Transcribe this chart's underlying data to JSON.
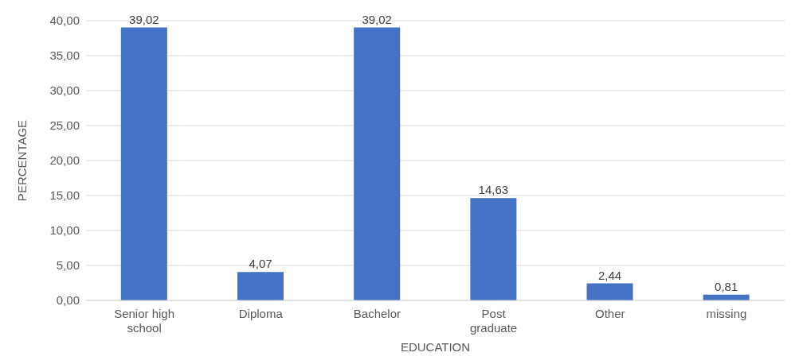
{
  "chart_data": {
    "type": "bar",
    "xlabel": "EDUCATION",
    "ylabel": "PERCENTAGE",
    "categories": [
      "Senior high school",
      "Diploma",
      "Bachelor",
      "Post graduate",
      "Other",
      "missing"
    ],
    "values": [
      39.02,
      4.07,
      39.02,
      14.63,
      2.44,
      0.81
    ],
    "value_labels": [
      "39,02",
      "4,07",
      "39,02",
      "14,63",
      "2,44",
      "0,81"
    ],
    "color": "#4472c4",
    "ylim": [
      0,
      40
    ],
    "yticks": [
      {
        "value": 0,
        "label": "0,00"
      },
      {
        "value": 5,
        "label": "5,00"
      },
      {
        "value": 10,
        "label": "10,00"
      },
      {
        "value": 15,
        "label": "15,00"
      },
      {
        "value": 20,
        "label": "20,00"
      },
      {
        "value": 25,
        "label": "25,00"
      },
      {
        "value": 30,
        "label": "30,00"
      },
      {
        "value": 35,
        "label": "35,00"
      },
      {
        "value": 40,
        "label": "40,00"
      }
    ],
    "grid": "y"
  }
}
